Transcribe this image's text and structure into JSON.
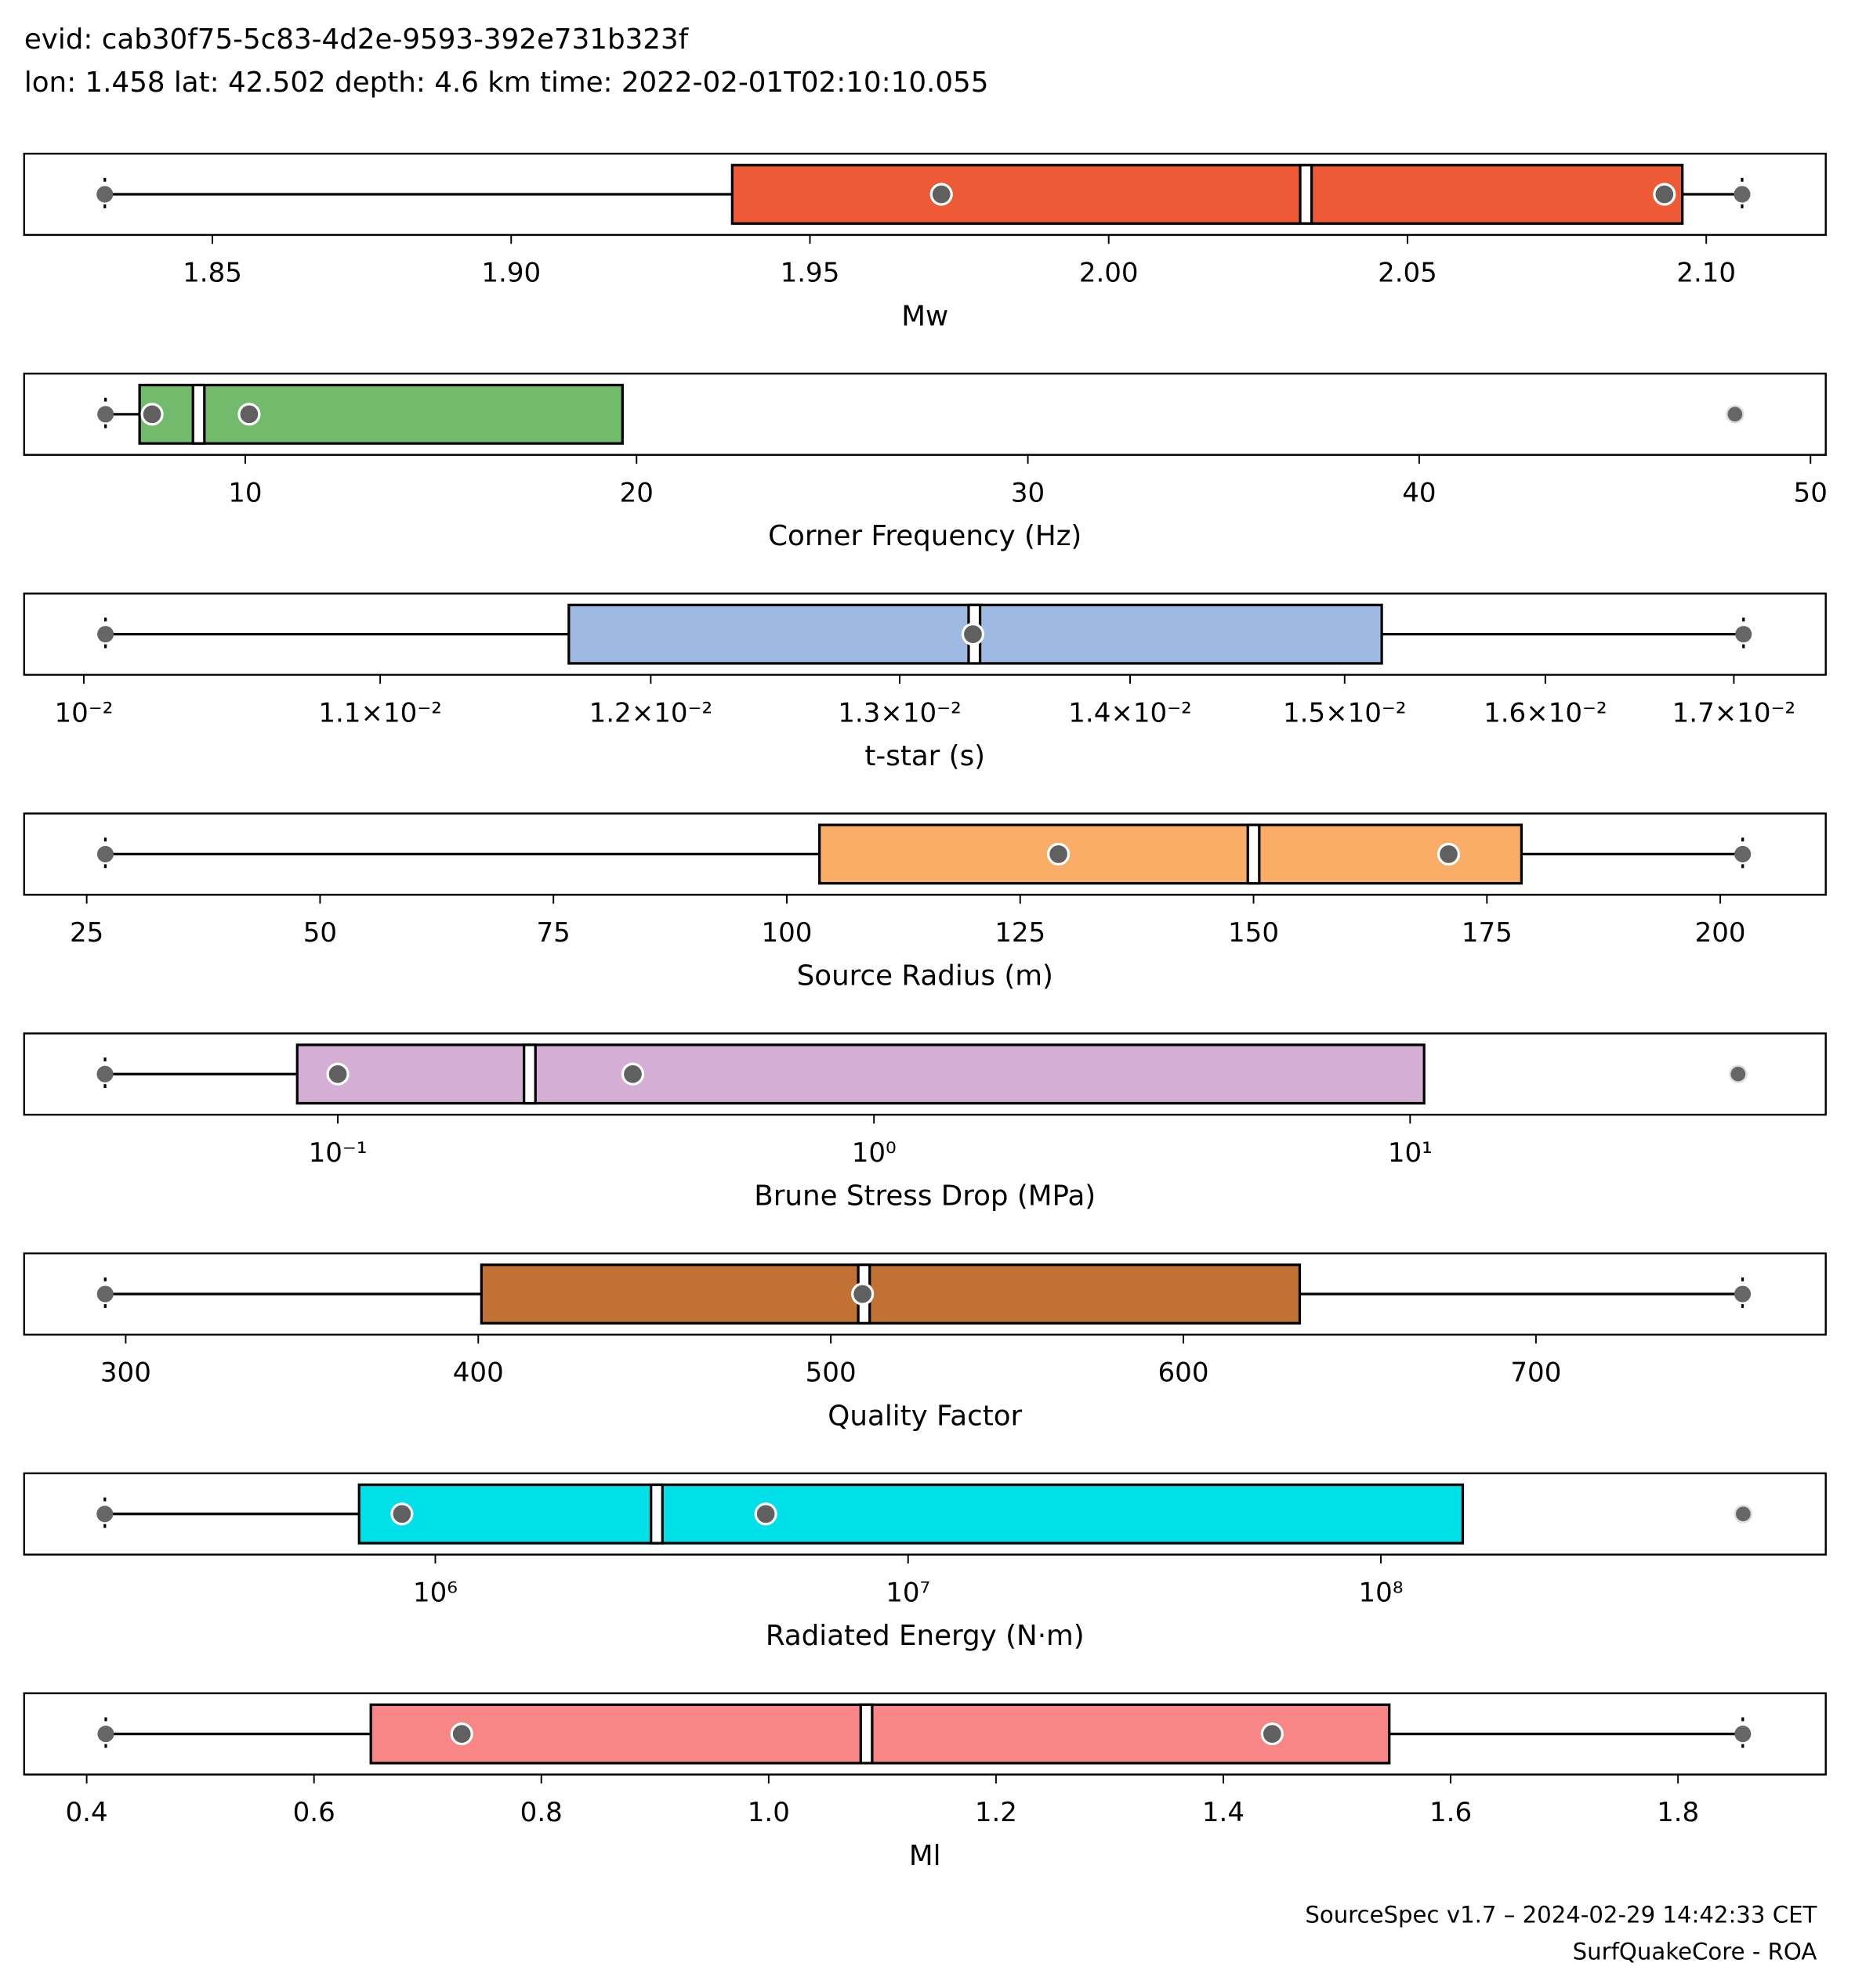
{
  "header": {
    "evid": "evid: cab30f75-5c83-4d2e-9593-392e731b323f",
    "location": "lon: 1.458 lat: 42.502 depth: 4.6 km time: 2022-02-01T02:10:10.055"
  },
  "footer": {
    "version": "SourceSpec v1.7 – 2024-02-29 14:42:33 CET",
    "author": "SurfQuakeCore - ROA"
  },
  "chart_data": [
    {
      "type": "box",
      "xlabel": "Mw",
      "color": "#ee5a36",
      "log": false,
      "xlim": [
        1.8185,
        2.12
      ],
      "xticks": [
        {
          "value": 1.85,
          "label": "1.85"
        },
        {
          "value": 1.9,
          "label": "1.90"
        },
        {
          "value": 1.95,
          "label": "1.95"
        },
        {
          "value": 2.0,
          "label": "2.00"
        },
        {
          "value": 2.05,
          "label": "2.05"
        },
        {
          "value": 2.1,
          "label": "2.10"
        }
      ],
      "min": 1.832,
      "max": 2.106,
      "q1": 1.937,
      "median": 2.033,
      "q3": 2.096,
      "points": [
        1.972,
        2.093
      ],
      "whiskers": "both"
    },
    {
      "type": "box",
      "xlabel": "Corner Frequency (Hz)",
      "color": "#72ba6c",
      "log": false,
      "xlim": [
        4.35,
        50.39
      ],
      "xticks": [
        {
          "value": 10,
          "label": "10"
        },
        {
          "value": 20,
          "label": "20"
        },
        {
          "value": 30,
          "label": "30"
        },
        {
          "value": 40,
          "label": "40"
        },
        {
          "value": 50,
          "label": "50"
        }
      ],
      "min": 6.43,
      "max": 48.07,
      "q1": 7.3,
      "median": 8.81,
      "q3": 19.64,
      "points": [
        7.62,
        10.1
      ],
      "whiskers": "left"
    },
    {
      "type": "box",
      "xlabel": "t-star (s)",
      "color": "#9ebae3",
      "log": true,
      "xlim": [
        0.00981,
        0.01751
      ],
      "xticks": [
        {
          "value": 0.01,
          "label": "10⁻²"
        },
        {
          "value": 0.011,
          "label": "1.1×10⁻²"
        },
        {
          "value": 0.012,
          "label": "1.2×10⁻²"
        },
        {
          "value": 0.013,
          "label": "1.3×10⁻²"
        },
        {
          "value": 0.014,
          "label": "1.4×10⁻²"
        },
        {
          "value": 0.015,
          "label": "1.5×10⁻²"
        },
        {
          "value": 0.016,
          "label": "1.6×10⁻²"
        },
        {
          "value": 0.017,
          "label": "1.7×10⁻²"
        }
      ],
      "min": 0.01007,
      "max": 0.017053,
      "q1": 0.011688,
      "median": 0.013316,
      "q3": 0.01518,
      "points": [
        0.01331
      ],
      "whiskers": "both"
    },
    {
      "type": "box",
      "xlabel": "Source Radius (m)",
      "color": "#f9ad66",
      "log": false,
      "xlim": [
        18.3,
        211.3
      ],
      "xticks": [
        {
          "value": 25,
          "label": "25"
        },
        {
          "value": 50,
          "label": "50"
        },
        {
          "value": 75,
          "label": "75"
        },
        {
          "value": 100,
          "label": "100"
        },
        {
          "value": 125,
          "label": "125"
        },
        {
          "value": 150,
          "label": "150"
        },
        {
          "value": 175,
          "label": "175"
        },
        {
          "value": 200,
          "label": "200"
        }
      ],
      "min": 27.0,
      "max": 202.4,
      "q1": 103.5,
      "median": 150.0,
      "q3": 178.7,
      "points": [
        129.1,
        170.9
      ],
      "whiskers": "both"
    },
    {
      "type": "box",
      "xlabel": "Brune Stress Drop (MPa)",
      "color": "#d4aed5",
      "log": true,
      "xlim": [
        0.026,
        59.6
      ],
      "xticks": [
        {
          "value": 0.1,
          "label": "10⁻¹"
        },
        {
          "value": 1,
          "label": "10⁰"
        },
        {
          "value": 10,
          "label": "10¹"
        }
      ],
      "min": 0.0368,
      "max": 40.9,
      "q1": 0.084,
      "median": 0.228,
      "q3": 10.62,
      "points": [
        0.1,
        0.355
      ],
      "whiskers": "left"
    },
    {
      "type": "box",
      "xlabel": "Quality Factor",
      "color": "#c07133",
      "log": false,
      "xlim": [
        271.2,
        782.2
      ],
      "xticks": [
        {
          "value": 300,
          "label": "300"
        },
        {
          "value": 400,
          "label": "400"
        },
        {
          "value": 500,
          "label": "500"
        },
        {
          "value": 600,
          "label": "600"
        },
        {
          "value": 700,
          "label": "700"
        }
      ],
      "min": 294.2,
      "max": 758.6,
      "q1": 400.9,
      "median": 509.4,
      "q3": 633.0,
      "points": [
        509.0
      ],
      "whiskers": "both"
    },
    {
      "type": "box",
      "xlabel": "Radiated Energy (N·m)",
      "color": "#00e0e8",
      "log": true,
      "xlim": [
        135000,
        873000000
      ],
      "xticks": [
        {
          "value": 1000000,
          "label": "10⁶"
        },
        {
          "value": 10000000,
          "label": "10⁷"
        },
        {
          "value": 100000000,
          "label": "10⁸"
        }
      ],
      "min": 200000,
      "max": 584000000,
      "q1": 690000,
      "median": 2940000,
      "q3": 149000000,
      "points": [
        850000,
        5000000
      ],
      "whiskers": "left"
    },
    {
      "type": "box",
      "xlabel": "Ml",
      "color": "#f88686",
      "log": false,
      "xlim": [
        0.345,
        1.93
      ],
      "xticks": [
        {
          "value": 0.4,
          "label": "0.4"
        },
        {
          "value": 0.6,
          "label": "0.6"
        },
        {
          "value": 0.8,
          "label": "0.8"
        },
        {
          "value": 1.0,
          "label": "1.0"
        },
        {
          "value": 1.2,
          "label": "1.2"
        },
        {
          "value": 1.4,
          "label": "1.4"
        },
        {
          "value": 1.6,
          "label": "1.6"
        },
        {
          "value": 1.8,
          "label": "1.8"
        }
      ],
      "min": 0.4168,
      "max": 1.857,
      "q1": 0.65,
      "median": 1.086,
      "q3": 1.546,
      "points": [
        0.73,
        1.443
      ],
      "whiskers": "both"
    }
  ]
}
